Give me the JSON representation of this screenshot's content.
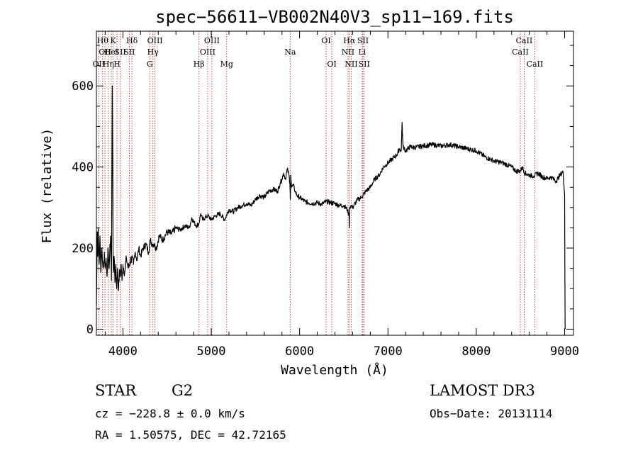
{
  "chart_data": {
    "type": "line",
    "title": "spec−56611−VB002N40V3_sp11−169.fits",
    "xlabel": "Wavelength (Å)",
    "ylabel": "Flux (relative)",
    "xlim": [
      3700,
      9100
    ],
    "ylim": [
      -15,
      735
    ],
    "xticks": [
      4000,
      5000,
      6000,
      7000,
      8000,
      9000
    ],
    "yticks": [
      0,
      200,
      400,
      600
    ],
    "series": [
      {
        "name": "flux",
        "x": [
          3700,
          3705,
          3710,
          3715,
          3720,
          3730,
          3740,
          3750,
          3760,
          3770,
          3780,
          3790,
          3800,
          3810,
          3820,
          3830,
          3840,
          3850,
          3860,
          3870,
          3880,
          3885,
          3888,
          3892,
          3900,
          3910,
          3920,
          3930,
          3940,
          3950,
          3960,
          3970,
          3980,
          3990,
          4000,
          4020,
          4040,
          4060,
          4080,
          4100,
          4120,
          4140,
          4160,
          4180,
          4200,
          4230,
          4260,
          4290,
          4310,
          4330,
          4350,
          4380,
          4410,
          4450,
          4500,
          4550,
          4600,
          4650,
          4700,
          4750,
          4780,
          4800,
          4830,
          4860,
          4880,
          4900,
          4930,
          4960,
          5000,
          5050,
          5100,
          5150,
          5200,
          5250,
          5300,
          5350,
          5400,
          5450,
          5500,
          5550,
          5600,
          5650,
          5700,
          5750,
          5780,
          5800,
          5820,
          5840,
          5860,
          5880,
          5890,
          5895,
          5900,
          5910,
          5930,
          5950,
          5970,
          6000,
          6030,
          6060,
          6100,
          6150,
          6200,
          6250,
          6300,
          6350,
          6400,
          6450,
          6500,
          6540,
          6560,
          6563,
          6566,
          6580,
          6600,
          6650,
          6700,
          6750,
          6800,
          6850,
          6900,
          6950,
          7000,
          7050,
          7100,
          7130,
          7150,
          7160,
          7170,
          7200,
          7250,
          7300,
          7400,
          7500,
          7600,
          7700,
          7800,
          7900,
          8000,
          8100,
          8200,
          8300,
          8400,
          8450,
          8500,
          8520,
          8550,
          8600,
          8650,
          8700,
          8750,
          8800,
          8850,
          8900,
          8950,
          8980,
          9000,
          9002,
          9005
        ],
        "values": [
          60,
          150,
          240,
          180,
          250,
          160,
          230,
          140,
          200,
          165,
          150,
          190,
          150,
          175,
          130,
          200,
          150,
          180,
          230,
          120,
          600,
          400,
          200,
          140,
          180,
          115,
          160,
          100,
          150,
          95,
          140,
          130,
          160,
          120,
          160,
          140,
          175,
          150,
          165,
          180,
          160,
          190,
          170,
          200,
          180,
          200,
          210,
          190,
          220,
          210,
          210,
          200,
          230,
          220,
          240,
          235,
          250,
          245,
          255,
          250,
          275,
          265,
          255,
          260,
          285,
          270,
          275,
          280,
          270,
          280,
          285,
          270,
          295,
          290,
          300,
          305,
          310,
          305,
          320,
          330,
          325,
          340,
          345,
          340,
          360,
          370,
          385,
          370,
          395,
          380,
          360,
          320,
          380,
          350,
          355,
          340,
          330,
          325,
          320,
          315,
          312,
          310,
          312,
          308,
          315,
          312,
          310,
          305,
          305,
          295,
          280,
          250,
          300,
          305,
          300,
          318,
          325,
          340,
          350,
          370,
          380,
          400,
          410,
          420,
          430,
          445,
          440,
          510,
          450,
          440,
          450,
          448,
          452,
          455,
          452,
          455,
          450,
          445,
          440,
          425,
          415,
          410,
          400,
          390,
          390,
          400,
          385,
          380,
          378,
          385,
          375,
          372,
          375,
          365,
          380,
          390,
          330,
          160,
          0
        ]
      }
    ],
    "lines": [
      {
        "x": 3727,
        "label": "OII",
        "row": 3
      },
      {
        "x": 3770,
        "label": "Hθ",
        "row": 1
      },
      {
        "x": 3797,
        "label": "OII",
        "row": 2
      },
      {
        "x": 3835,
        "label": "Hη",
        "row": 3
      },
      {
        "x": 3869,
        "label": "HeI",
        "row": 2
      },
      {
        "x": 3889,
        "label": "K",
        "row": 1
      },
      {
        "x": 3933,
        "label": "H",
        "row": 3
      },
      {
        "x": 3970,
        "label": "SII",
        "row": 2
      },
      {
        "x": 4072,
        "label": "SII",
        "row": 2
      },
      {
        "x": 4102,
        "label": "Hδ",
        "row": 1
      },
      {
        "x": 4304,
        "label": "G",
        "row": 3
      },
      {
        "x": 4340,
        "label": "Hγ",
        "row": 2
      },
      {
        "x": 4363,
        "label": "OIII",
        "row": 1
      },
      {
        "x": 4861,
        "label": "Hβ",
        "row": 3
      },
      {
        "x": 4959,
        "label": "OIII",
        "row": 2
      },
      {
        "x": 5007,
        "label": "OIII",
        "row": 1
      },
      {
        "x": 5175,
        "label": "Mg",
        "row": 3
      },
      {
        "x": 5893,
        "label": "Na",
        "row": 2
      },
      {
        "x": 6300,
        "label": "OI",
        "row": 1
      },
      {
        "x": 6364,
        "label": "OI",
        "row": 3
      },
      {
        "x": 6548,
        "label": "NII",
        "row": 2
      },
      {
        "x": 6563,
        "label": "Hα",
        "row": 1
      },
      {
        "x": 6584,
        "label": "NII",
        "row": 3
      },
      {
        "x": 6708,
        "label": "Li",
        "row": 2
      },
      {
        "x": 6717,
        "label": "SII",
        "row": 1
      },
      {
        "x": 6731,
        "label": "SII",
        "row": 3
      },
      {
        "x": 8498,
        "label": "CaII",
        "row": 2
      },
      {
        "x": 8542,
        "label": "CaII",
        "row": 1
      },
      {
        "x": 8662,
        "label": "CaII",
        "row": 3
      }
    ]
  },
  "info": {
    "object_class": "STAR",
    "subclass": "G2",
    "survey": "LAMOST DR3",
    "redshift": "cz = −228.8 ± 0.0 km/s",
    "obs_date": "Obs−Date: 20131114",
    "coords": "RA =   1.50575, DEC =  42.72165"
  }
}
